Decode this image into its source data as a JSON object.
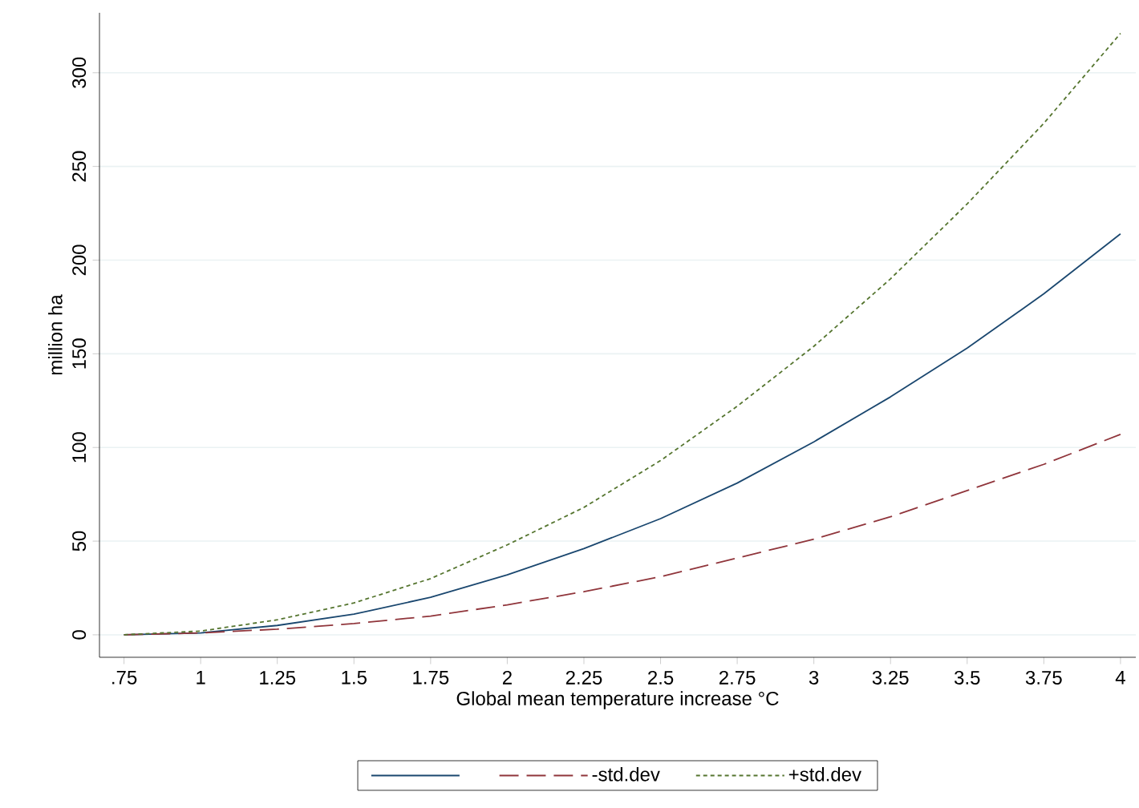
{
  "chart_data": {
    "type": "line",
    "xlabel": "Global mean temperature increase °C",
    "ylabel": "million ha",
    "x": [
      0.75,
      1,
      1.25,
      1.5,
      1.75,
      2,
      2.25,
      2.5,
      2.75,
      3,
      3.25,
      3.5,
      3.75,
      4
    ],
    "series": [
      {
        "color": "#1a476f",
        "line_style": "solid",
        "values": [
          0,
          1,
          5,
          11,
          20,
          32,
          46,
          62,
          81,
          103,
          127,
          153,
          182,
          214
        ]
      },
      {
        "name": "-std.dev",
        "color": "#90353b",
        "line_style": "dashed",
        "values": [
          0,
          1,
          3,
          6,
          10,
          16,
          23,
          31,
          41,
          51,
          63,
          77,
          91,
          107
        ]
      },
      {
        "name": "+std.dev",
        "color": "#55752f",
        "line_style": "dotted",
        "values": [
          0,
          2,
          8,
          17,
          30,
          48,
          68,
          93,
          122,
          154,
          190,
          230,
          273,
          321
        ]
      }
    ],
    "xlim": [
      0.67,
      4.05
    ],
    "ylim": [
      -12,
      332
    ],
    "xticks": [
      {
        "value": 0.75,
        "label": ".75"
      },
      1,
      1.25,
      1.5,
      1.75,
      2,
      2.25,
      2.5,
      2.75,
      3,
      3.25,
      3.5,
      3.75,
      4
    ],
    "yticks": [
      0,
      50,
      100,
      150,
      200,
      250,
      300
    ],
    "grid": "y",
    "legend": "bottom",
    "marker": "none"
  }
}
